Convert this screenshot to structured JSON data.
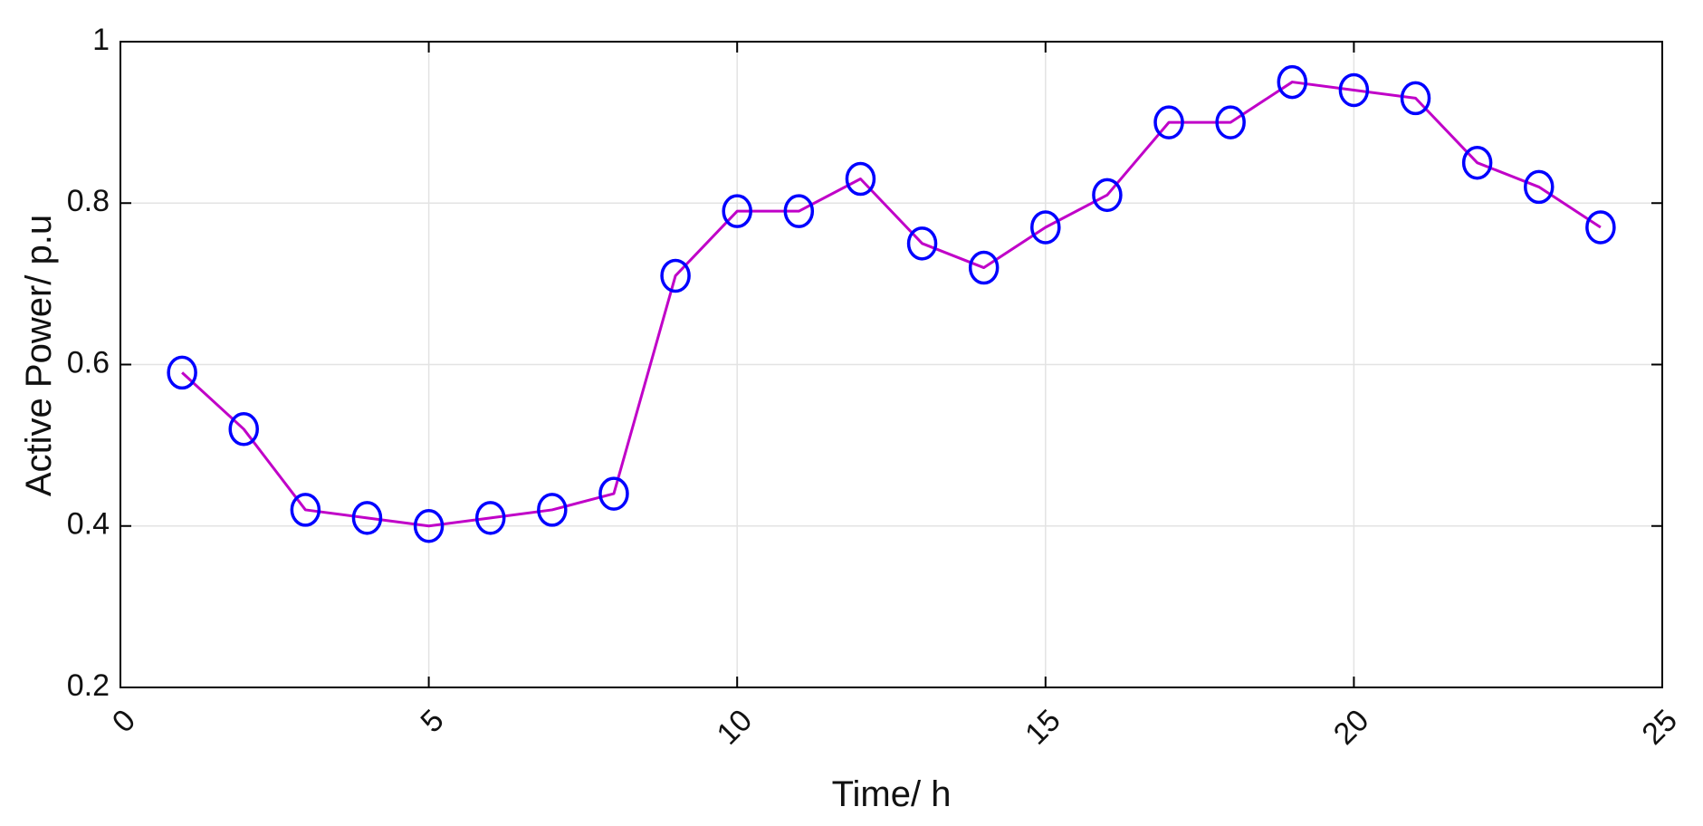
{
  "chart_data": {
    "type": "line",
    "title": "",
    "xlabel": "Time/ h",
    "ylabel": "Active Power/ p.u",
    "xlim": [
      0,
      25
    ],
    "ylim": [
      0.2,
      1
    ],
    "xticks": [
      "0",
      "5",
      "10",
      "15",
      "20",
      "25"
    ],
    "yticks": [
      "0.2",
      "0.4",
      "0.6",
      "0.8",
      "1"
    ],
    "grid": true,
    "legend": "none",
    "x": [
      1,
      2,
      3,
      4,
      5,
      6,
      7,
      8,
      9,
      10,
      11,
      12,
      13,
      14,
      15,
      16,
      17,
      18,
      19,
      20,
      21,
      22,
      23,
      24
    ],
    "series": [
      {
        "values": [
          0.59,
          0.52,
          0.42,
          0.41,
          0.4,
          0.41,
          0.42,
          0.44,
          0.71,
          0.79,
          0.79,
          0.83,
          0.75,
          0.72,
          0.77,
          0.81,
          0.9,
          0.9,
          0.95,
          0.94,
          0.93,
          0.85,
          0.82,
          0.77
        ],
        "line_color": "#c000c8",
        "marker": "circle",
        "marker_color": "#0000ff"
      }
    ]
  }
}
